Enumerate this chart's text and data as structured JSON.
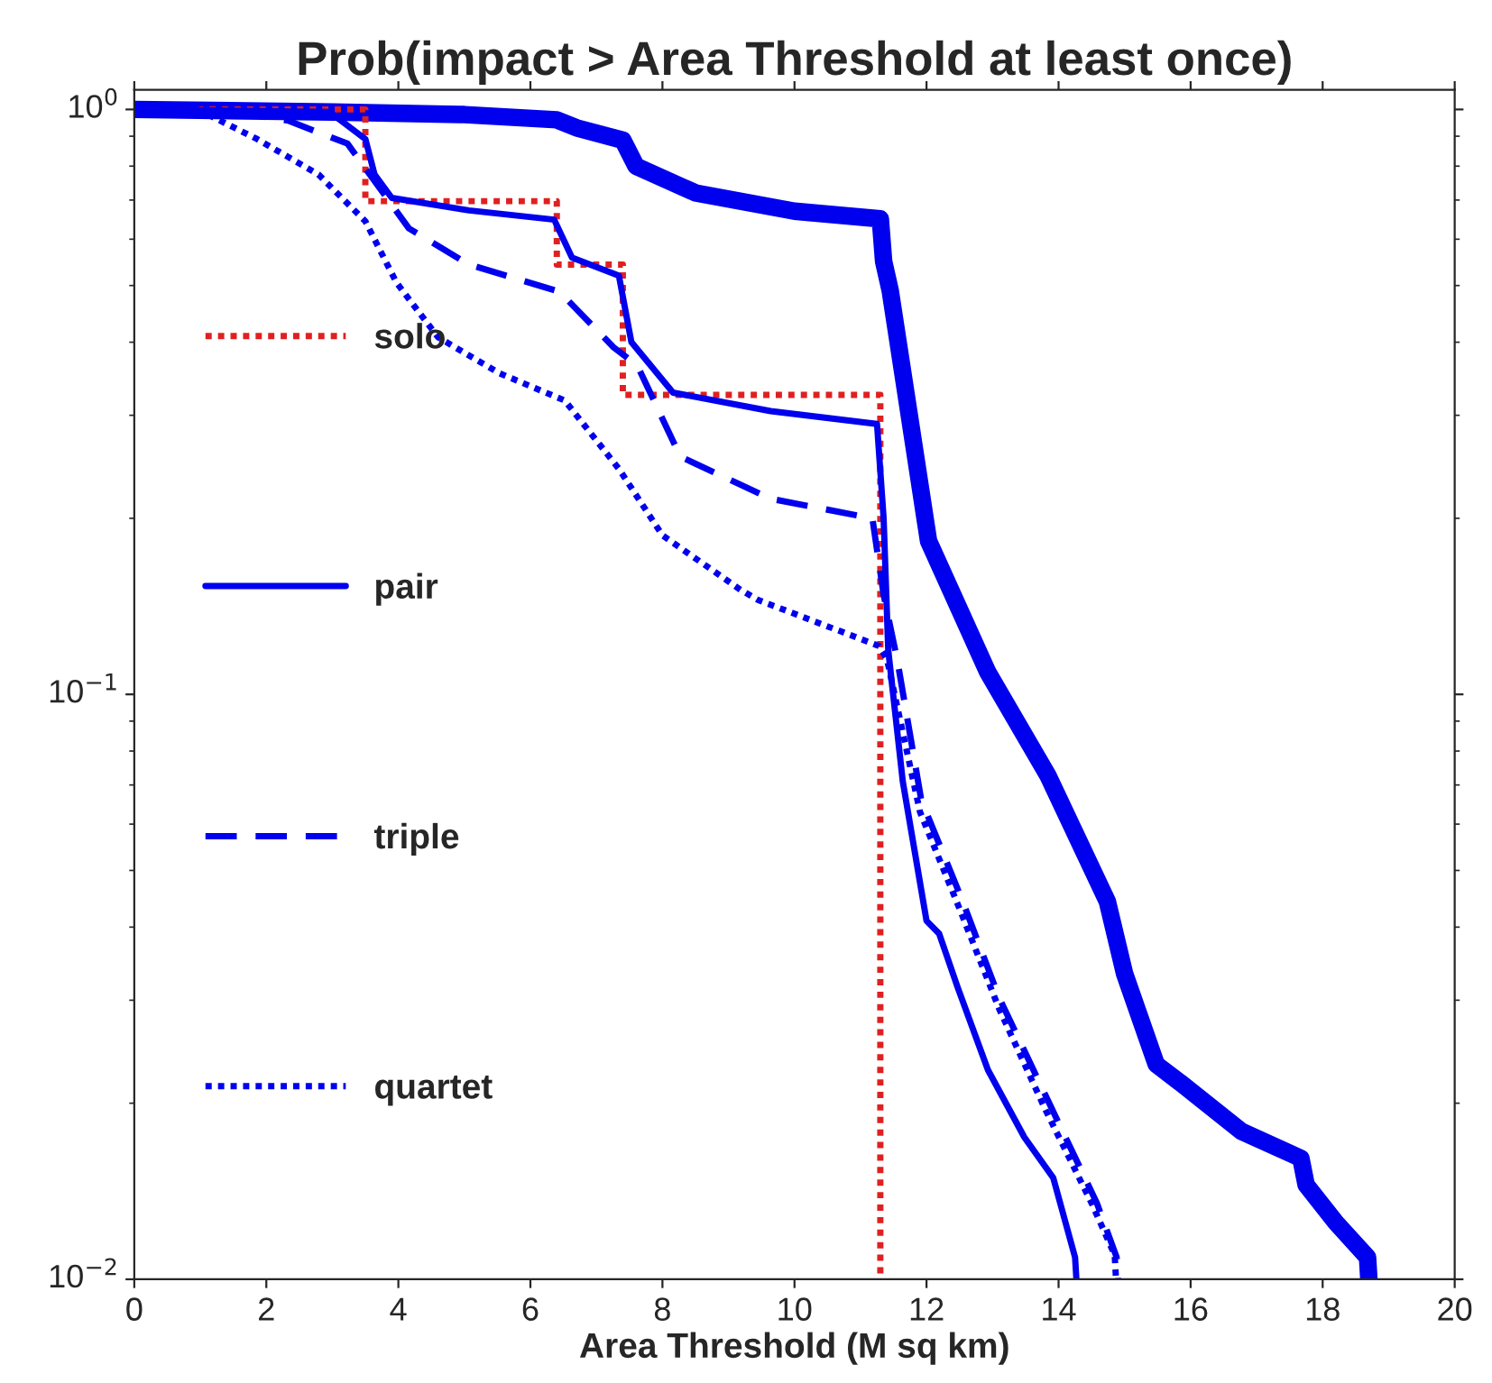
{
  "chart_data": {
    "type": "line",
    "title": "Prob(impact > Area Threshold at least once)",
    "xlabel": "Area Threshold (M sq km)",
    "xlim": [
      0,
      20
    ],
    "xticks": [
      0,
      2,
      4,
      6,
      8,
      10,
      12,
      14,
      16,
      18,
      20
    ],
    "ylim": [
      0.01,
      1.08
    ],
    "log": "y",
    "yticks": [
      {
        "value": 0.01,
        "label": "10$^{−2}$"
      },
      {
        "value": 0.1,
        "label": "10$^{−1}$"
      },
      {
        "value": 1,
        "label": "10$^{0}$"
      }
    ],
    "grid": false,
    "legend": "left",
    "series": [
      {
        "color": "#0000ee",
        "line_style": "solid",
        "x": [
          0,
          3,
          5,
          6.4,
          6.7,
          7.4,
          7.6,
          8.5,
          10,
          11.3,
          11.35,
          11.45,
          12.03,
          12.93,
          13.84,
          14.74,
          15.0,
          15.48,
          15.84,
          16.77,
          17.67,
          17.75,
          18.2,
          18.68,
          18.7
        ],
        "values": [
          1,
          0.99,
          0.98,
          0.96,
          0.93,
          0.886,
          0.8,
          0.72,
          0.67,
          0.65,
          0.55,
          0.49,
          0.183,
          0.109,
          0.0726,
          0.0442,
          0.0333,
          0.0233,
          0.0217,
          0.0179,
          0.0161,
          0.0145,
          0.0125,
          0.0109,
          0.01
        ]
      },
      {
        "name": "solo",
        "type": "step",
        "color": "#e02020",
        "line_style": "dotted",
        "x": [
          0,
          3.5,
          6.4,
          7.4,
          11.3
        ],
        "values": [
          1,
          0.697,
          0.543,
          0.325,
          0.01
        ]
      },
      {
        "name": "pair",
        "color": "#0000ee",
        "line_style": "solid",
        "x": [
          0,
          2.96,
          3.5,
          3.64,
          3.9,
          5.07,
          6.36,
          6.63,
          7.34,
          7.53,
          8.16,
          9.64,
          11.25,
          11.35,
          11.42,
          11.64,
          12.0,
          12.19,
          12.47,
          12.93,
          13.48,
          13.92,
          14.25,
          14.27
        ],
        "values": [
          1,
          0.99,
          0.89,
          0.774,
          0.706,
          0.672,
          0.648,
          0.558,
          0.52,
          0.4,
          0.328,
          0.305,
          0.29,
          0.2,
          0.119,
          0.071,
          0.041,
          0.039,
          0.0316,
          0.0228,
          0.0175,
          0.0149,
          0.0109,
          0.01
        ]
      },
      {
        "name": "triple",
        "color": "#0000ee",
        "line_style": "dashed",
        "x": [
          0,
          1.5,
          2.33,
          3.23,
          4.16,
          5.07,
          6.44,
          7.26,
          7.62,
          8.27,
          9.64,
          11.18,
          11.35,
          11.56,
          11.92,
          12.55,
          13.1,
          13.84,
          14.58,
          14.88,
          14.9
        ],
        "values": [
          1,
          0.99,
          0.957,
          0.874,
          0.626,
          0.543,
          0.488,
          0.392,
          0.365,
          0.255,
          0.216,
          0.2,
          0.148,
          0.114,
          0.066,
          0.0442,
          0.0303,
          0.0202,
          0.0135,
          0.0109,
          0.01
        ]
      },
      {
        "name": "quartet",
        "color": "#0000ee",
        "line_style": "dotted",
        "x": [
          0,
          0.96,
          1.86,
          2.79,
          3.5,
          3.97,
          4.6,
          5.53,
          6.52,
          7.34,
          8.0,
          9.18,
          9.45,
          11.28,
          11.4,
          11.9,
          12.5,
          13.1,
          13.8,
          14.5,
          14.85,
          14.87
        ],
        "values": [
          1,
          1,
          0.89,
          0.774,
          0.644,
          0.506,
          0.408,
          0.354,
          0.318,
          0.243,
          0.187,
          0.151,
          0.145,
          0.121,
          0.115,
          0.063,
          0.043,
          0.029,
          0.0195,
          0.0135,
          0.011,
          0.01
        ]
      }
    ]
  }
}
